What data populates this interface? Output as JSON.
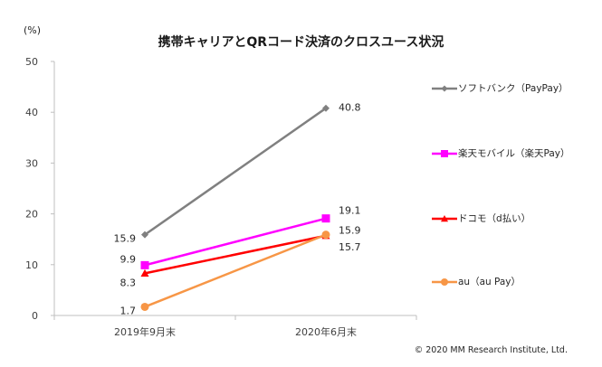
{
  "chart_data": {
    "type": "line",
    "title": "携帯キャリアとQRコード決済のクロスユース状況",
    "unit_label": "(%)",
    "categories": [
      "2019年9月末",
      "2020年6月末"
    ],
    "ylim": [
      0,
      50
    ],
    "yticks": [
      "0",
      "10",
      "20",
      "30",
      "40",
      "50"
    ],
    "grid": false,
    "legend_position": "right",
    "series": [
      {
        "name": "ソフトバンク（PayPay）",
        "values": [
          15.9,
          40.8
        ],
        "labels": [
          "15.9",
          "40.8"
        ],
        "color": "#808080",
        "marker": "diamond"
      },
      {
        "name": "楽天モバイル（楽天Pay）",
        "values": [
          9.9,
          19.1
        ],
        "labels": [
          "9.9",
          "19.1"
        ],
        "color": "#ff00ff",
        "marker": "square"
      },
      {
        "name": "ドコモ（d払い）",
        "values": [
          8.3,
          15.7
        ],
        "labels": [
          "8.3",
          "15.7"
        ],
        "color": "#ff0000",
        "marker": "triangle"
      },
      {
        "name": "au（au Pay）",
        "values": [
          1.7,
          15.9
        ],
        "labels": [
          "1.7",
          "15.9"
        ],
        "color": "#f79646",
        "marker": "circle"
      }
    ]
  },
  "footer": {
    "copyright": "© 2020  MM Research Institute, Ltd."
  }
}
